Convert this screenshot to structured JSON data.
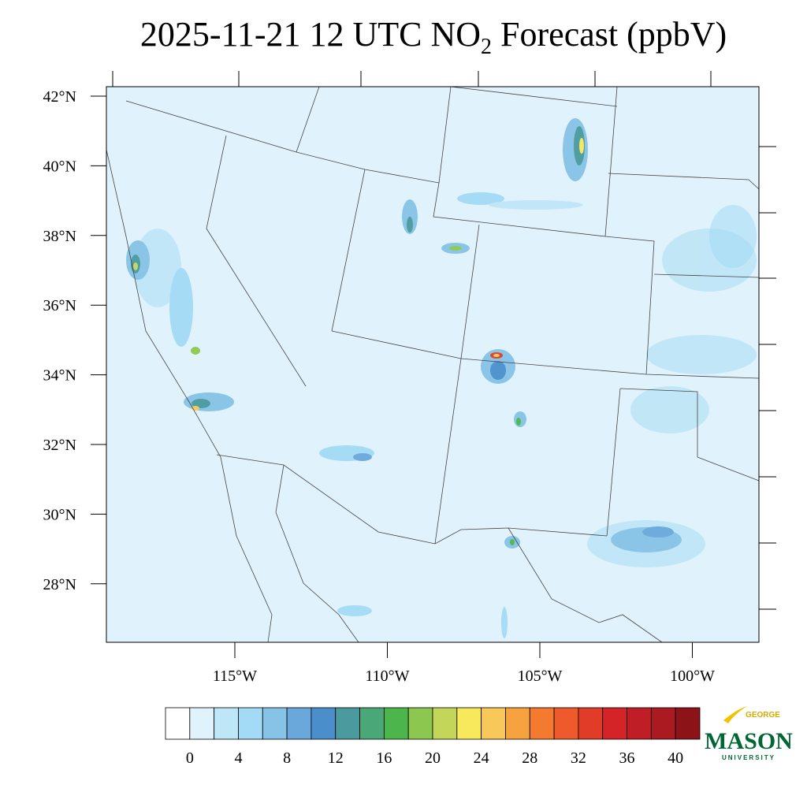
{
  "title": {
    "main": "2025-11-21 12 UTC NO",
    "subscript": "2",
    "rest": " Forecast (ppbV)"
  },
  "map": {
    "lat_ticks": [
      {
        "value": 42,
        "label": "42°N"
      },
      {
        "value": 40,
        "label": "40°N"
      },
      {
        "value": 38,
        "label": "38°N"
      },
      {
        "value": 36,
        "label": "36°N"
      },
      {
        "value": 34,
        "label": "34°N"
      },
      {
        "value": 32,
        "label": "32°N"
      },
      {
        "value": 30,
        "label": "30°N"
      },
      {
        "value": 28,
        "label": "28°N"
      }
    ],
    "lon_ticks": [
      {
        "value": -115,
        "label": "115°W"
      },
      {
        "value": -110,
        "label": "110°W"
      },
      {
        "value": -105,
        "label": "105°W"
      },
      {
        "value": -100,
        "label": "100°W"
      }
    ]
  },
  "colorbar": {
    "boundaries": [
      0,
      2,
      4,
      6,
      8,
      10,
      12,
      14,
      16,
      18,
      20,
      22,
      24,
      26,
      28,
      30,
      32,
      34,
      36,
      38,
      40
    ],
    "ticks": [
      0,
      4,
      8,
      12,
      16,
      20,
      24,
      28,
      32,
      36,
      40
    ],
    "colors": [
      "#ffffff",
      "#e0f3fc",
      "#bfe6f7",
      "#a3daf5",
      "#86c3e6",
      "#6aa8dc",
      "#4a8fcc",
      "#4a9a9e",
      "#4aa878",
      "#4cb64c",
      "#8cc850",
      "#c4d65a",
      "#f7e85c",
      "#f8c858",
      "#f6a23e",
      "#f47a30",
      "#ee5a2c",
      "#e03c28",
      "#d42428",
      "#c01e26",
      "#aa1a20",
      "#8c1418"
    ]
  },
  "logo": {
    "top": "GEORGE",
    "main": "MASON",
    "bottom": "UNIVERSITY"
  }
}
